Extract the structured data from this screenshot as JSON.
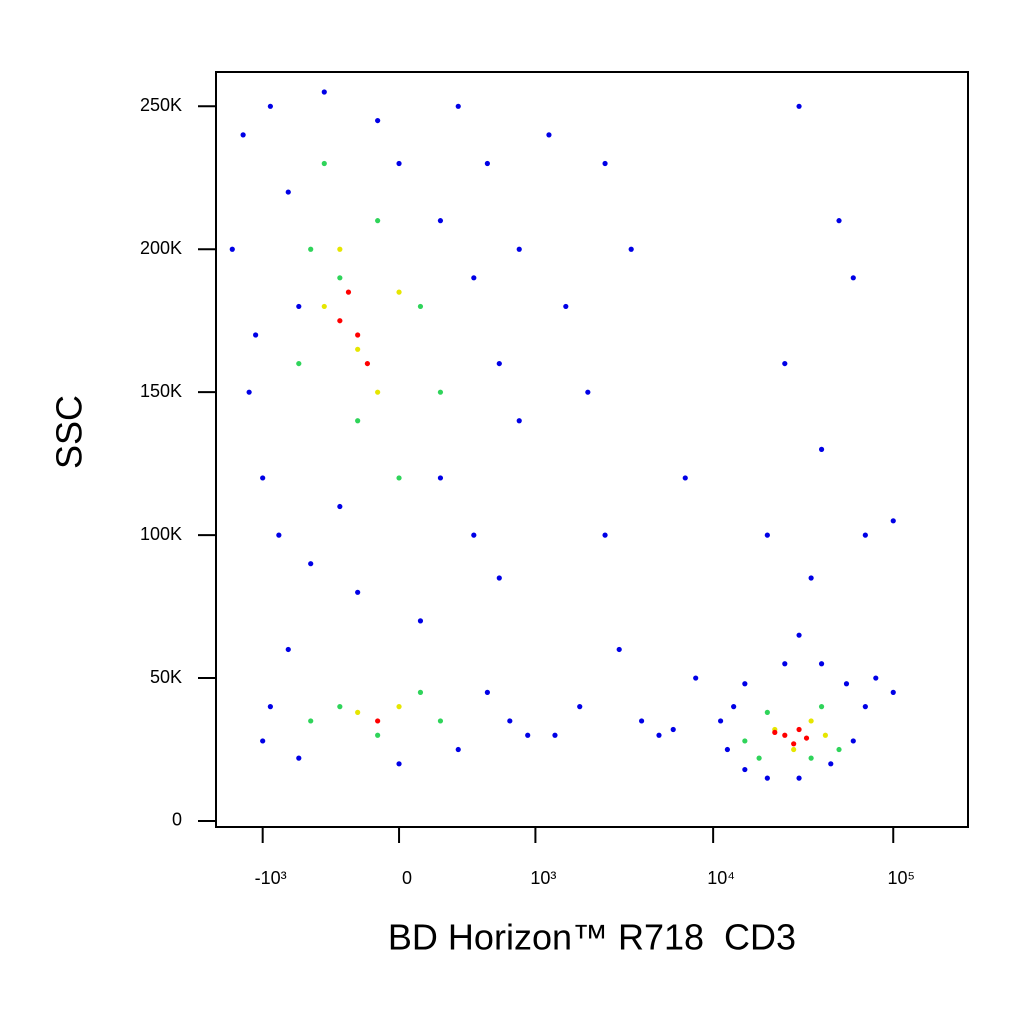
{
  "chart_data": {
    "type": "scatter",
    "x_label": "BD Horizon™ R718  CD3",
    "y_label": "SSC",
    "xscale": "biexponential",
    "xlim": [
      -1856,
      260000
    ],
    "ylim": [
      -2100,
      262000
    ],
    "xticks": [
      {
        "value": -1000,
        "label": "-10³"
      },
      0,
      {
        "value": 1000,
        "label": "10³"
      },
      {
        "value": 10000,
        "label": "10⁴"
      },
      {
        "value": 100000,
        "label": "10⁵"
      }
    ],
    "yticks": [
      0,
      {
        "value": 50000,
        "label": "50K"
      },
      {
        "value": 100000,
        "label": "100K"
      },
      {
        "value": 150000,
        "label": "150K"
      },
      {
        "value": 200000,
        "label": "200K"
      },
      {
        "value": 250000,
        "label": "250K"
      }
    ],
    "series": [
      {
        "color": "#0000e6",
        "x": [
          -1500,
          -1200,
          -1300,
          -900,
          -700,
          -600,
          -1000,
          -400,
          -100,
          0,
          200,
          400,
          600,
          800,
          500,
          300,
          -800,
          -500,
          -200,
          100,
          400,
          600,
          -700,
          -900,
          -1000,
          -600,
          0,
          300,
          500,
          700,
          900,
          -300,
          200,
          -1100,
          800,
          1200,
          1500,
          2000,
          2500,
          3000,
          1800,
          1300,
          4000,
          5000,
          6000,
          7000,
          3500,
          2500,
          8000,
          30000,
          50000,
          60000,
          25000,
          40000,
          20000,
          35000,
          70000,
          100000,
          11000,
          12000,
          15000,
          20000,
          30000,
          45000,
          60000,
          70000,
          55000,
          40000,
          25000,
          15000,
          30000,
          80000,
          13000,
          100000
        ],
        "y": [
          200000,
          150000,
          240000,
          250000,
          220000,
          180000,
          120000,
          255000,
          245000,
          230000,
          210000,
          190000,
          160000,
          140000,
          230000,
          250000,
          100000,
          90000,
          80000,
          70000,
          100000,
          85000,
          60000,
          40000,
          28000,
          22000,
          20000,
          25000,
          45000,
          35000,
          30000,
          110000,
          120000,
          170000,
          200000,
          240000,
          180000,
          150000,
          100000,
          60000,
          40000,
          30000,
          35000,
          30000,
          32000,
          120000,
          200000,
          230000,
          50000,
          250000,
          210000,
          190000,
          160000,
          130000,
          100000,
          85000,
          100000,
          105000,
          35000,
          25000,
          18000,
          15000,
          15000,
          20000,
          28000,
          40000,
          48000,
          55000,
          55000,
          48000,
          65000,
          50000,
          40000,
          45000
        ]
      },
      {
        "color": "#2fd45a",
        "x": [
          -500,
          -300,
          -100,
          100,
          -600,
          -200,
          200,
          -400,
          0,
          -300,
          -100,
          100,
          -500,
          200,
          15000,
          20000,
          40000,
          50000,
          35000,
          18000
        ],
        "y": [
          200000,
          190000,
          210000,
          180000,
          160000,
          140000,
          150000,
          230000,
          120000,
          40000,
          30000,
          45000,
          35000,
          35000,
          28000,
          38000,
          40000,
          25000,
          22000,
          22000
        ]
      },
      {
        "color": "#e6e600",
        "x": [
          -400,
          -200,
          0,
          -300,
          -100,
          -200,
          0,
          22000,
          35000,
          28000,
          42000
        ],
        "y": [
          180000,
          165000,
          185000,
          200000,
          150000,
          38000,
          40000,
          32000,
          35000,
          25000,
          30000
        ]
      },
      {
        "color": "#ff0000",
        "x": [
          -300,
          -200,
          -250,
          -150,
          -100,
          25000,
          30000,
          28000,
          33000,
          22000
        ],
        "y": [
          175000,
          170000,
          185000,
          160000,
          35000,
          30000,
          32000,
          27000,
          29000,
          31000
        ]
      }
    ]
  }
}
